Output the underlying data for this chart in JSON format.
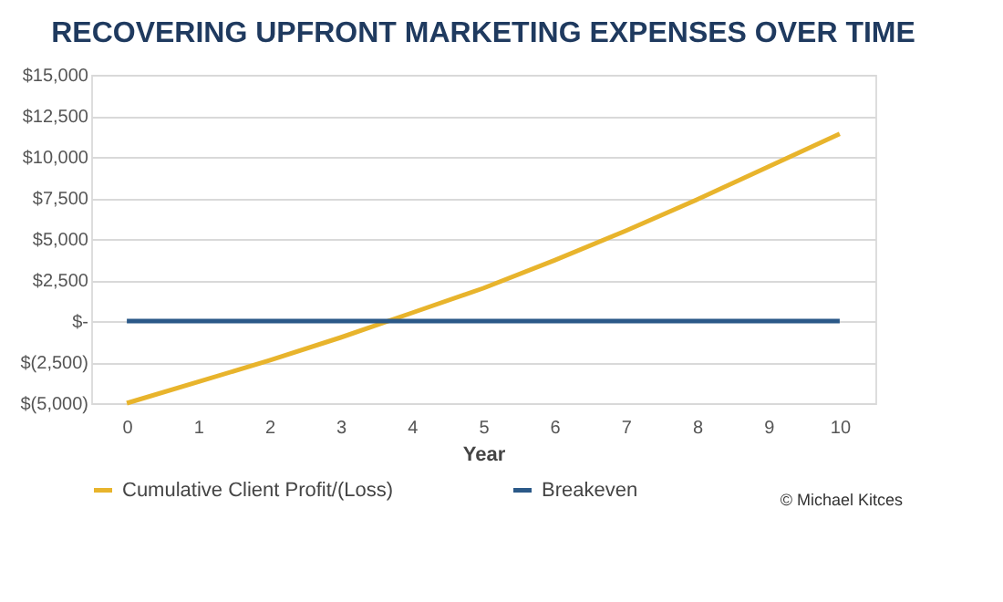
{
  "chart_data": {
    "type": "line",
    "title": "RECOVERING UPFRONT MARKETING EXPENSES OVER TIME",
    "xlabel": "Year",
    "categories": [
      "0",
      "1",
      "2",
      "3",
      "4",
      "5",
      "6",
      "7",
      "8",
      "9",
      "10"
    ],
    "series": [
      {
        "name": "Cumulative Client Profit/(Loss)",
        "color": "#e8b42c",
        "values": [
          -5000,
          -3700,
          -2400,
          -1000,
          500,
          2000,
          3700,
          5500,
          7400,
          9400,
          11400
        ]
      },
      {
        "name": "Breakeven",
        "color": "#2b5988",
        "values": [
          0,
          0,
          0,
          0,
          0,
          0,
          0,
          0,
          0,
          0,
          0
        ]
      }
    ],
    "ylim": [
      -5000,
      15000
    ],
    "yticks": [
      {
        "value": -5000,
        "label": "$(5,000)"
      },
      {
        "value": -2500,
        "label": "$(2,500)"
      },
      {
        "value": 0,
        "label": "$-"
      },
      {
        "value": 2500,
        "label": "$2,500"
      },
      {
        "value": 5000,
        "label": "$5,000"
      },
      {
        "value": 7500,
        "label": "$7,500"
      },
      {
        "value": 10000,
        "label": "$10,000"
      },
      {
        "value": 12500,
        "label": "$12,500"
      },
      {
        "value": 15000,
        "label": "$15,000"
      }
    ],
    "grid": "y",
    "legend": "bottom",
    "marker": "none",
    "line_style": "solid",
    "annotations": [
      "© Michael Kitces"
    ]
  }
}
